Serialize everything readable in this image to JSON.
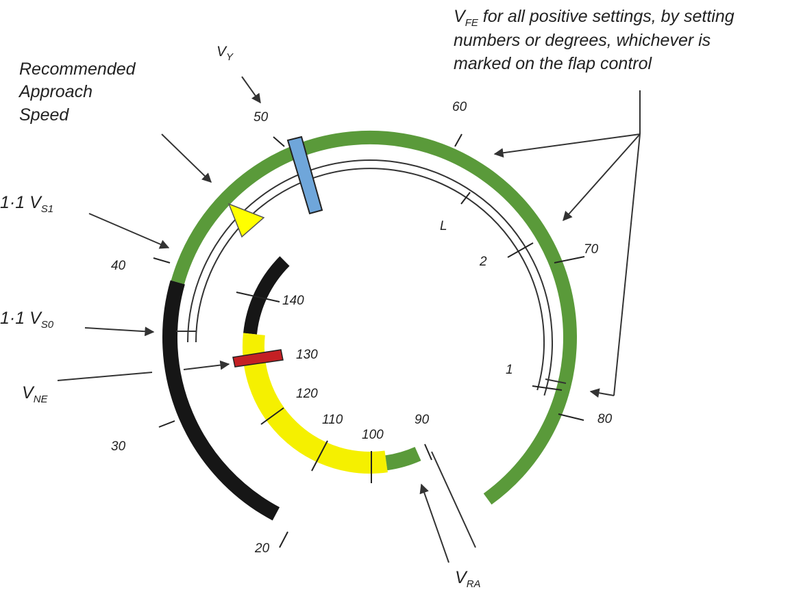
{
  "colors": {
    "green": "#5a9a3a",
    "green_edge": "#2d5d1c",
    "black": "#161616",
    "yellow": "#f5f000",
    "yellow_edge": "#3a3a10",
    "red": "#c42024",
    "blue": "#6fa6da",
    "marker_yellow": "#ffff00",
    "text": "#222222",
    "line": "#333333"
  },
  "outer_scale_labels": [
    "20",
    "30",
    "40",
    "50",
    "60",
    "70",
    "80"
  ],
  "inner_scale_labels": [
    "90",
    "100",
    "110",
    "120",
    "130",
    "140"
  ],
  "flap_labels": [
    "L",
    "2",
    "1"
  ],
  "annotations": {
    "vfe_main": "V",
    "vfe_sub": "FE",
    "vfe_line1_rest": " for all positive settings, by setting",
    "vfe_line2": "numbers or degrees, whichever is",
    "vfe_line3": "marked on the flap control",
    "vy_main": "V",
    "vy_sub": "Y",
    "approach_line1": "Recommended",
    "approach_line2": "Approach",
    "approach_line3": "Speed",
    "vs1_prefix": "1·1 V",
    "vs1_sub": "S1",
    "vs0_prefix": "1·1 V",
    "vs0_sub": "S0",
    "vne_main": "V",
    "vne_sub": "NE",
    "vra_main": "V",
    "vra_sub": "RA"
  }
}
